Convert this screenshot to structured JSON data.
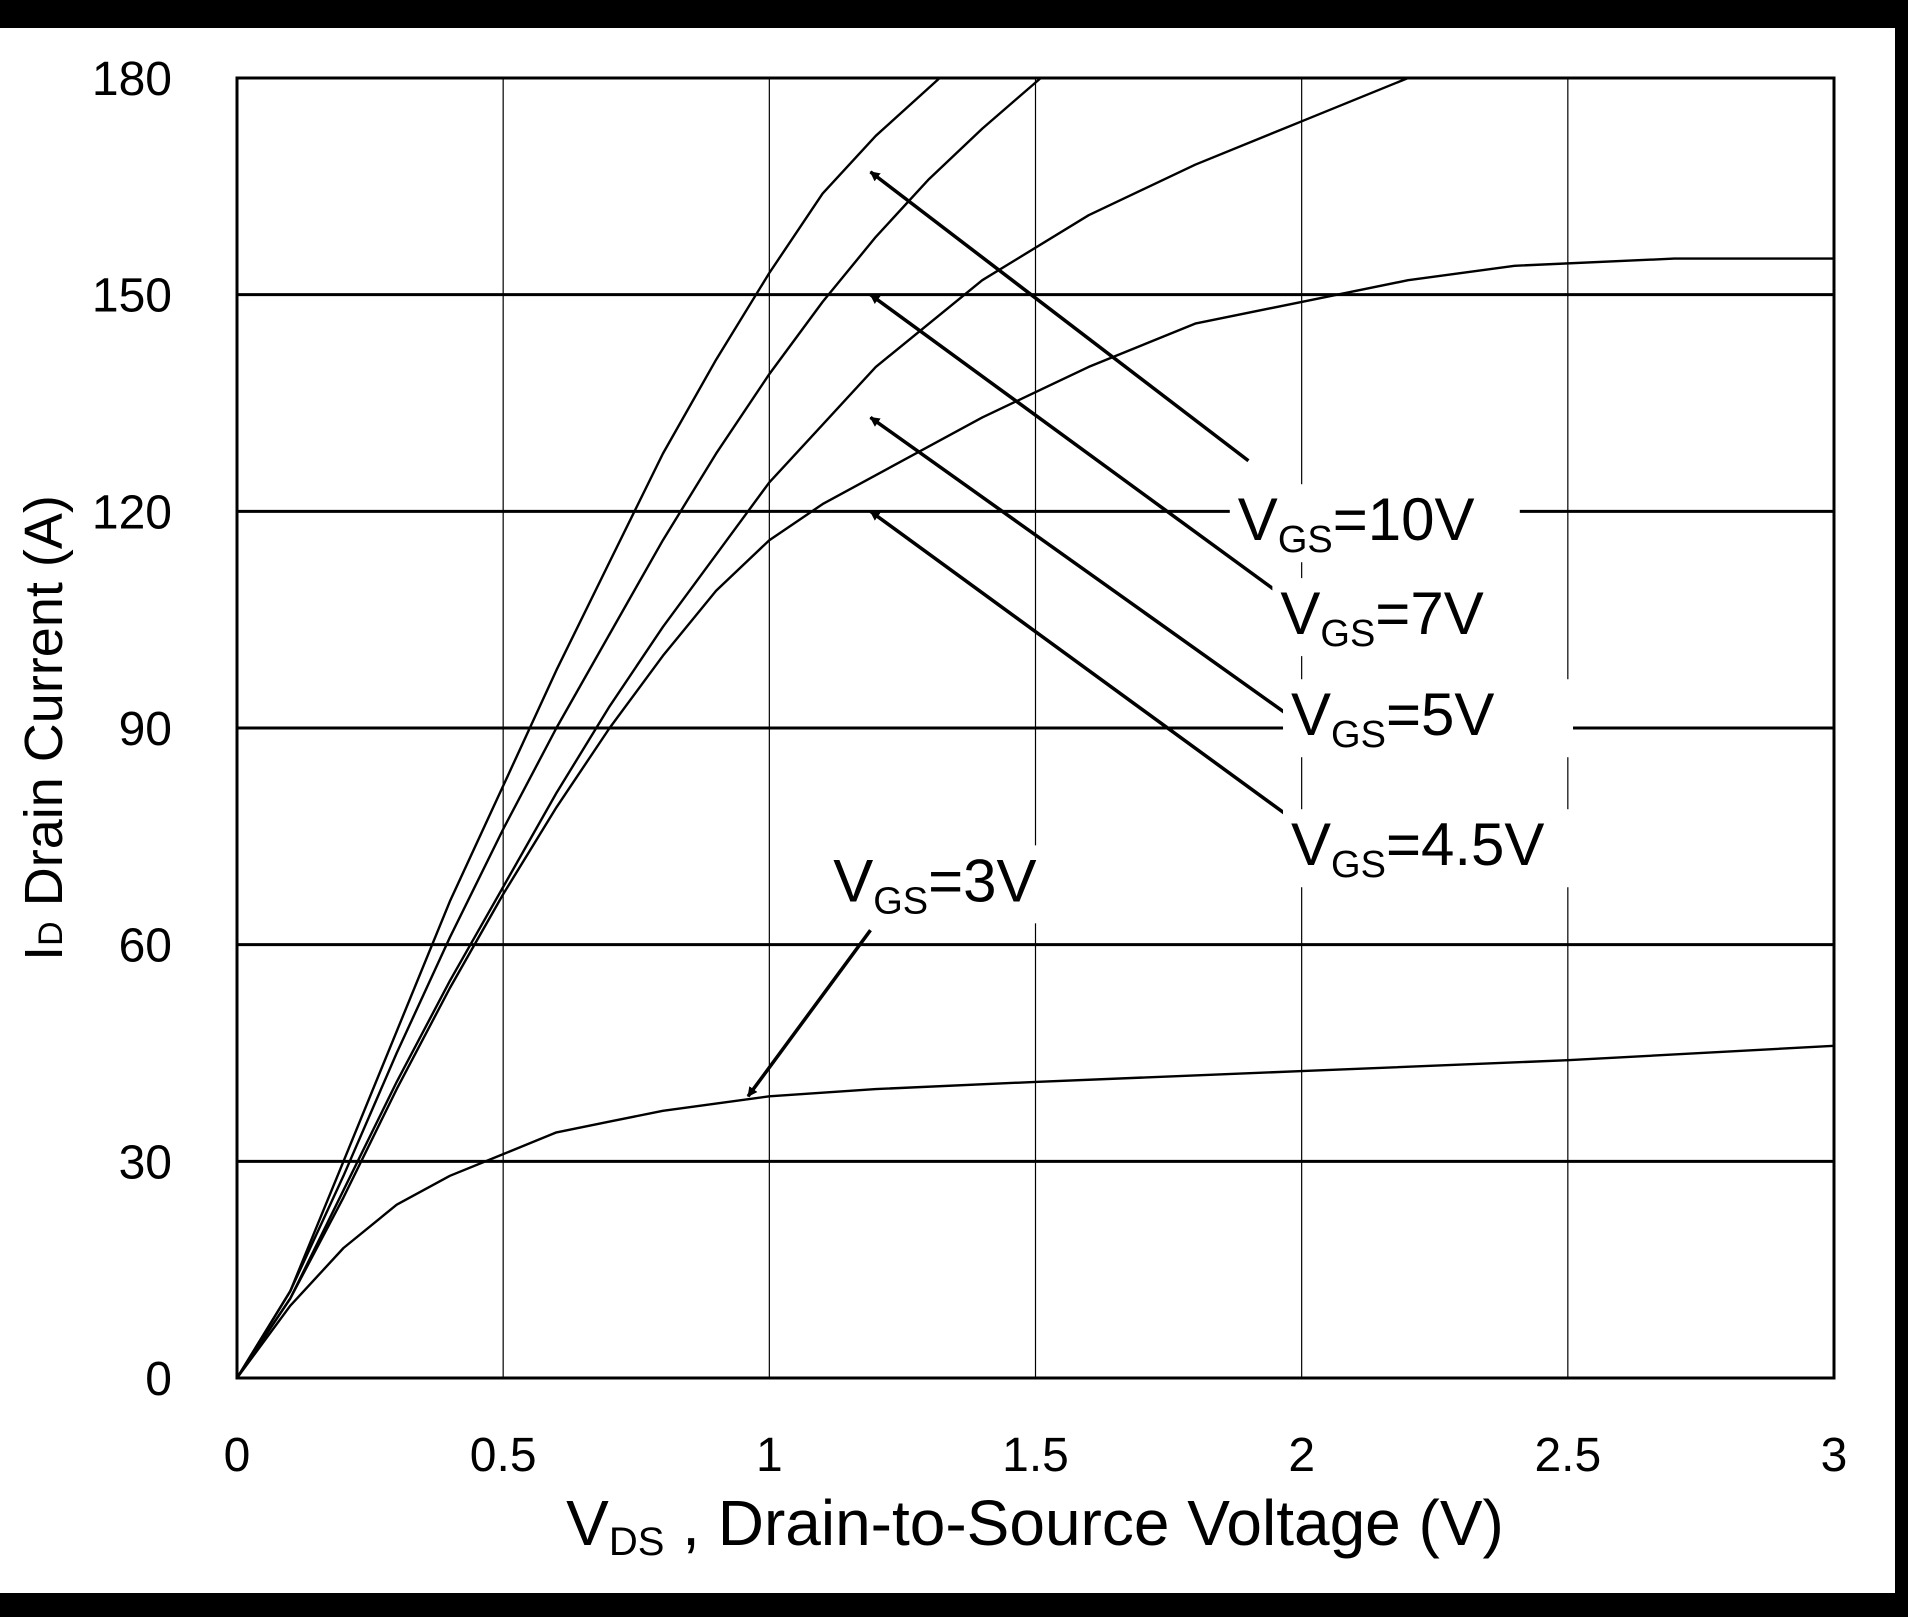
{
  "chart_data": {
    "type": "line",
    "title": "",
    "xlabel": "V",
    "xlabel_sub": "DS",
    "xlabel_rest": " , Drain-to-Source Voltage (V)",
    "ylabel": "I",
    "ylabel_sub": "D",
    "ylabel_rest": " Drain Current (A)",
    "xlim": [
      0,
      3
    ],
    "ylim": [
      0,
      180
    ],
    "x_ticks": [
      0,
      0.5,
      1,
      1.5,
      2,
      2.5,
      3
    ],
    "x_tick_labels": [
      "0",
      "0.5",
      "1",
      "1.5",
      "2",
      "2.5",
      "3"
    ],
    "y_ticks": [
      0,
      30,
      60,
      90,
      120,
      150,
      180
    ],
    "y_tick_labels": [
      "0",
      "30",
      "60",
      "90",
      "120",
      "150",
      "180"
    ],
    "grid": true,
    "series": [
      {
        "name": "VGS=10V",
        "label_main": "V",
        "label_sub": "GS",
        "label_rest": "=10V",
        "label_anchor": [
          1.88,
          116
        ],
        "arrow_from": [
          1.9,
          127
        ],
        "arrow_to": [
          1.19,
          167
        ],
        "x": [
          0,
          0.1,
          0.2,
          0.3,
          0.4,
          0.5,
          0.6,
          0.7,
          0.8,
          0.9,
          1.0,
          1.1,
          1.2,
          1.32
        ],
        "y": [
          0,
          12,
          30,
          48,
          66,
          82,
          98,
          113,
          128,
          141,
          153,
          164,
          172,
          180
        ]
      },
      {
        "name": "VGS=7V",
        "label_main": "V",
        "label_sub": "GS",
        "label_rest": "=7V",
        "label_anchor": [
          1.96,
          103
        ],
        "arrow_from": [
          1.97,
          108
        ],
        "arrow_to": [
          1.19,
          150
        ],
        "x": [
          0,
          0.1,
          0.2,
          0.3,
          0.4,
          0.5,
          0.6,
          0.7,
          0.8,
          0.9,
          1.0,
          1.1,
          1.2,
          1.3,
          1.4,
          1.51
        ],
        "y": [
          0,
          12,
          28,
          45,
          61,
          76,
          90,
          103,
          116,
          128,
          139,
          149,
          158,
          166,
          173,
          180
        ]
      },
      {
        "name": "VGS=5V",
        "label_main": "V",
        "label_sub": "GS",
        "label_rest": "=5V",
        "label_anchor": [
          1.98,
          89
        ],
        "arrow_from": [
          1.99,
          91
        ],
        "arrow_to": [
          1.19,
          133
        ],
        "x": [
          0,
          0.1,
          0.2,
          0.3,
          0.4,
          0.5,
          0.6,
          0.7,
          0.8,
          0.9,
          1.0,
          1.1,
          1.2,
          1.4,
          1.6,
          1.8,
          2.0,
          2.2
        ],
        "y": [
          0,
          11,
          26,
          41,
          55,
          68,
          81,
          93,
          104,
          114,
          124,
          132,
          140,
          152,
          161,
          168,
          174,
          180
        ]
      },
      {
        "name": "VGS=4.5V",
        "label_main": "V",
        "label_sub": "GS",
        "label_rest": "=4.5V",
        "label_anchor": [
          1.98,
          71
        ],
        "arrow_from": [
          1.99,
          77
        ],
        "arrow_to": [
          1.19,
          120
        ],
        "x": [
          0,
          0.1,
          0.2,
          0.3,
          0.4,
          0.5,
          0.6,
          0.7,
          0.8,
          0.9,
          1.0,
          1.1,
          1.2,
          1.4,
          1.6,
          1.8,
          2.0,
          2.2,
          2.4,
          2.7,
          3.0
        ],
        "y": [
          0,
          11,
          25,
          40,
          54,
          67,
          79,
          90,
          100,
          109,
          116,
          121,
          125,
          133,
          140,
          146,
          149,
          152,
          154,
          155,
          155
        ]
      },
      {
        "name": "VGS=3V",
        "label_main": "V",
        "label_sub": "GS",
        "label_rest": "=3V",
        "label_anchor": [
          1.12,
          66
        ],
        "arrow_from": [
          1.19,
          62
        ],
        "arrow_to": [
          0.96,
          39
        ],
        "x": [
          0,
          0.1,
          0.2,
          0.3,
          0.4,
          0.5,
          0.6,
          0.7,
          0.8,
          0.9,
          1.0,
          1.2,
          1.5,
          2.0,
          2.5,
          3.0
        ],
        "y": [
          0,
          10,
          18,
          24,
          28,
          31,
          34,
          35.5,
          37,
          38,
          39,
          40,
          41,
          42.5,
          44,
          46
        ]
      }
    ]
  }
}
